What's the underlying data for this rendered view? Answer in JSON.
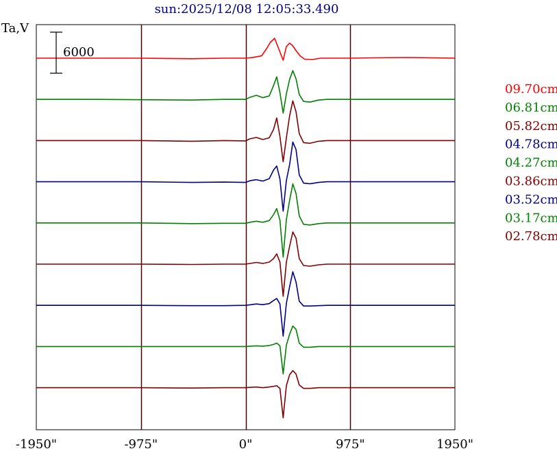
{
  "chart_data": {
    "type": "line",
    "title": "sun:2025/12/08 12:05:33.490",
    "ylabel": "Ta,V",
    "scale_bar_label": "6000",
    "scale_bar_value": 6000,
    "x_tick_labels": [
      "-1950\"",
      "-975\"",
      "0\"",
      "975\"",
      "1950\""
    ],
    "x_ticks": [
      -1950,
      -975,
      0,
      975,
      1950
    ],
    "xlim": [
      -1950,
      1950
    ],
    "grid": "vertical lines at -975, 0, 975 arcsec",
    "legend_position": "right",
    "series": [
      {
        "name": "09.70cm",
        "color": "#ff0000",
        "x": [
          -1950,
          -1400,
          -975,
          -500,
          -200,
          0,
          60,
          150,
          200,
          230,
          270,
          310,
          350,
          380,
          410,
          440,
          470,
          510,
          550,
          620,
          700,
          800,
          900,
          975,
          1200,
          1500,
          1950
        ],
        "y": [
          0,
          0,
          0,
          -80,
          0,
          0,
          80,
          350,
          1500,
          2300,
          2900,
          1300,
          -300,
          1700,
          2200,
          1800,
          1100,
          300,
          -150,
          -200,
          0,
          0,
          0,
          0,
          50,
          100,
          0
        ]
      },
      {
        "name": "06.81cm",
        "color": "#008000",
        "x": [
          -1950,
          -1400,
          -975,
          -500,
          -200,
          0,
          40,
          100,
          160,
          220,
          260,
          290,
          320,
          350,
          380,
          410,
          440,
          470,
          500,
          540,
          600,
          680,
          760,
          850,
          975,
          1200,
          1500,
          1950
        ],
        "y": [
          0,
          0,
          -50,
          -100,
          0,
          0,
          300,
          600,
          250,
          500,
          2000,
          3300,
          1000,
          -2000,
          800,
          2900,
          4200,
          3000,
          700,
          -300,
          -400,
          -100,
          0,
          0,
          0,
          0,
          0,
          0
        ]
      },
      {
        "name": "05.82cm",
        "color": "#800000",
        "x": [
          -1950,
          -1400,
          -975,
          -500,
          -200,
          0,
          40,
          100,
          160,
          220,
          260,
          290,
          320,
          350,
          380,
          410,
          440,
          470,
          500,
          540,
          600,
          680,
          760,
          850,
          975,
          1200,
          1500,
          1950
        ],
        "y": [
          0,
          0,
          0,
          -100,
          0,
          -50,
          250,
          450,
          150,
          400,
          1600,
          3300,
          600,
          -3100,
          400,
          3600,
          5800,
          4200,
          1000,
          -300,
          -400,
          -100,
          0,
          0,
          0,
          0,
          0,
          0
        ]
      },
      {
        "name": "04.78cm",
        "color": "#000080",
        "x": [
          -1950,
          -1400,
          -975,
          -500,
          -200,
          0,
          40,
          100,
          160,
          220,
          260,
          290,
          320,
          350,
          380,
          410,
          440,
          470,
          500,
          540,
          600,
          680,
          760,
          850,
          975,
          1200,
          1500,
          1950
        ],
        "y": [
          0,
          0,
          0,
          -100,
          -50,
          -100,
          150,
          300,
          100,
          450,
          1700,
          2300,
          400,
          -4300,
          200,
          2500,
          5800,
          4700,
          1000,
          -200,
          -300,
          -100,
          0,
          0,
          0,
          0,
          0,
          0
        ]
      },
      {
        "name": "04.27cm",
        "color": "#008000",
        "x": [
          -1950,
          -1400,
          -975,
          -500,
          -200,
          0,
          40,
          100,
          160,
          220,
          260,
          290,
          320,
          350,
          380,
          410,
          440,
          470,
          500,
          540,
          600,
          680,
          760,
          850,
          975,
          1200,
          1500,
          1950
        ],
        "y": [
          0,
          0,
          0,
          -100,
          -50,
          -50,
          100,
          250,
          100,
          350,
          1200,
          2100,
          400,
          -5000,
          500,
          3300,
          5700,
          4300,
          1000,
          -200,
          -300,
          -100,
          0,
          0,
          0,
          0,
          0,
          0
        ]
      },
      {
        "name": "03.86cm",
        "color": "#800000",
        "x": [
          -1950,
          -1400,
          -975,
          -500,
          -200,
          0,
          40,
          100,
          160,
          220,
          260,
          290,
          320,
          350,
          380,
          410,
          440,
          470,
          500,
          540,
          600,
          680,
          760,
          850,
          975,
          1200,
          1500,
          1950
        ],
        "y": [
          0,
          0,
          0,
          -50,
          0,
          0,
          100,
          250,
          100,
          300,
          800,
          1500,
          300,
          -4700,
          300,
          2600,
          4700,
          3800,
          800,
          -200,
          -300,
          -100,
          0,
          0,
          0,
          0,
          0,
          0
        ]
      },
      {
        "name": "03.52cm",
        "color": "#000080",
        "x": [
          -1950,
          -1400,
          -975,
          -500,
          -200,
          0,
          40,
          100,
          160,
          220,
          260,
          290,
          320,
          350,
          380,
          410,
          440,
          470,
          500,
          540,
          600,
          680,
          760,
          850,
          975,
          1200,
          1500,
          1950
        ],
        "y": [
          0,
          0,
          0,
          -50,
          -50,
          0,
          80,
          200,
          100,
          250,
          700,
          1000,
          200,
          -4500,
          300,
          2700,
          4900,
          3400,
          600,
          -100,
          -100,
          -50,
          0,
          0,
          0,
          0,
          0,
          0
        ]
      },
      {
        "name": "03.17cm",
        "color": "#008000",
        "x": [
          -1950,
          -1400,
          -975,
          -500,
          -200,
          0,
          40,
          100,
          160,
          220,
          260,
          290,
          320,
          350,
          380,
          410,
          440,
          470,
          500,
          540,
          600,
          680,
          760,
          850,
          975,
          1200,
          1500,
          1950
        ],
        "y": [
          0,
          0,
          0,
          0,
          0,
          0,
          50,
          100,
          50,
          150,
          300,
          500,
          100,
          -4000,
          200,
          1800,
          3000,
          2500,
          500,
          -100,
          -100,
          0,
          0,
          0,
          0,
          0,
          0,
          0
        ]
      },
      {
        "name": "02.78cm",
        "color": "#800000",
        "x": [
          -1950,
          -1400,
          -975,
          -500,
          -200,
          0,
          40,
          100,
          160,
          220,
          260,
          290,
          320,
          350,
          380,
          410,
          440,
          470,
          500,
          540,
          600,
          680,
          760,
          850,
          975,
          1200,
          1500,
          1950
        ],
        "y": [
          0,
          0,
          0,
          -50,
          0,
          0,
          50,
          100,
          0,
          100,
          200,
          300,
          -100,
          -4400,
          300,
          1900,
          2500,
          2000,
          400,
          -100,
          -100,
          0,
          0,
          0,
          0,
          0,
          0,
          0
        ]
      }
    ]
  }
}
